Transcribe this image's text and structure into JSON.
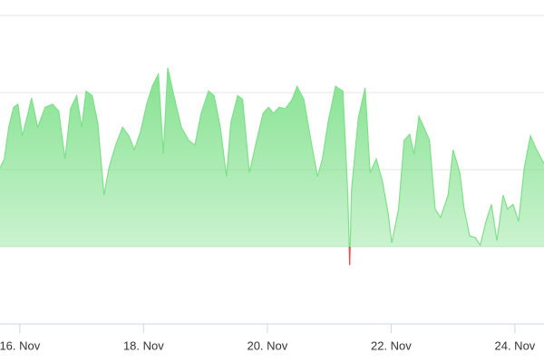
{
  "chart_data": {
    "type": "area",
    "x": [
      15.68,
      15.75,
      15.82,
      15.9,
      15.97,
      16.04,
      16.12,
      16.19,
      16.29,
      16.41,
      16.53,
      16.63,
      16.73,
      16.82,
      16.92,
      17.0,
      17.07,
      17.17,
      17.26,
      17.36,
      17.44,
      17.55,
      17.66,
      17.76,
      17.85,
      17.95,
      18.05,
      18.14,
      18.24,
      18.32,
      18.39,
      18.49,
      18.61,
      18.73,
      18.83,
      18.93,
      19.05,
      19.14,
      19.24,
      19.34,
      19.41,
      19.52,
      19.6,
      19.71,
      19.81,
      19.93,
      20.02,
      20.1,
      20.19,
      20.29,
      20.4,
      20.48,
      20.59,
      20.69,
      20.81,
      20.89,
      20.98,
      21.1,
      21.22,
      21.3,
      21.33,
      21.36,
      21.47,
      21.58,
      21.66,
      21.76,
      21.86,
      21.95,
      22.01,
      22.12,
      22.21,
      22.3,
      22.37,
      22.45,
      22.53,
      22.62,
      22.71,
      22.8,
      22.92,
      23.0,
      23.11,
      23.18,
      23.27,
      23.36,
      23.44,
      23.53,
      23.62,
      23.71,
      23.81,
      23.88,
      23.97,
      24.06,
      24.15,
      24.25,
      24.35,
      24.47
    ],
    "series": [
      {
        "color": "#7ee08a",
        "negative_color": "#f04a4a",
        "values": [
          1.02,
          1.14,
          1.55,
          1.81,
          1.85,
          1.44,
          1.69,
          1.93,
          1.55,
          1.81,
          1.85,
          1.76,
          1.14,
          1.79,
          1.96,
          1.55,
          2.02,
          1.96,
          1.61,
          0.67,
          1.02,
          1.32,
          1.55,
          1.44,
          1.26,
          1.49,
          1.85,
          2.08,
          2.24,
          1.2,
          2.32,
          1.96,
          1.55,
          1.38,
          1.32,
          1.73,
          2.02,
          1.96,
          1.55,
          0.91,
          1.61,
          1.96,
          1.91,
          0.96,
          1.32,
          1.73,
          1.81,
          1.73,
          1.81,
          1.79,
          1.91,
          2.08,
          1.91,
          1.44,
          0.91,
          1.14,
          1.61,
          2.08,
          2.02,
          0.67,
          -0.24,
          0.73,
          1.67,
          2.06,
          0.96,
          1.14,
          0.85,
          0.44,
          0.05,
          0.49,
          1.38,
          1.46,
          1.2,
          1.69,
          1.55,
          1.38,
          0.49,
          0.38,
          0.67,
          1.26,
          0.96,
          0.49,
          0.14,
          0.12,
          0.02,
          0.32,
          0.55,
          0.08,
          0.67,
          0.49,
          0.55,
          0.33,
          1.02,
          1.44,
          1.26,
          1.08
        ]
      }
    ],
    "xlim": [
      15.68,
      24.47
    ],
    "xticks": [
      {
        "value": 16,
        "label": "16. Nov"
      },
      {
        "value": 18,
        "label": "18. Nov"
      },
      {
        "value": 20,
        "label": "20. Nov"
      },
      {
        "value": 22,
        "label": "22. Nov"
      },
      {
        "value": 24,
        "label": "24. Nov"
      }
    ],
    "ylim": [
      -1,
      3
    ],
    "yticks": [
      -1,
      0,
      1,
      2,
      3
    ],
    "grid": true
  }
}
